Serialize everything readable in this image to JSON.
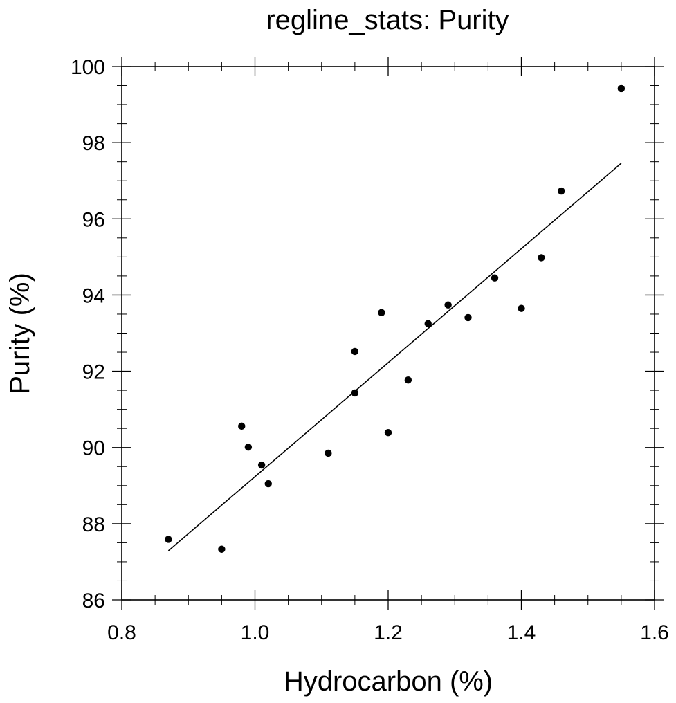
{
  "chart_data": {
    "type": "scatter",
    "title": "regline_stats: Purity",
    "xlabel": "Hydrocarbon (%)",
    "ylabel": "Purity (%)",
    "xlim": [
      0.8,
      1.6
    ],
    "ylim": [
      86,
      100
    ],
    "x_ticks": [
      "0.8",
      "1.0",
      "1.2",
      "1.4",
      "1.6"
    ],
    "y_ticks": [
      "86",
      "88",
      "90",
      "92",
      "94",
      "96",
      "98",
      "100"
    ],
    "x_tick_values": [
      0.8,
      1.0,
      1.2,
      1.4,
      1.6
    ],
    "y_tick_values": [
      86,
      88,
      90,
      92,
      94,
      96,
      98,
      100
    ],
    "grid": false,
    "points": [
      {
        "x": 0.87,
        "y": 87.59
      },
      {
        "x": 0.95,
        "y": 87.33
      },
      {
        "x": 0.98,
        "y": 90.56
      },
      {
        "x": 0.99,
        "y": 90.01
      },
      {
        "x": 1.01,
        "y": 89.54
      },
      {
        "x": 1.02,
        "y": 89.05
      },
      {
        "x": 1.11,
        "y": 89.85
      },
      {
        "x": 1.15,
        "y": 91.43
      },
      {
        "x": 1.15,
        "y": 92.52
      },
      {
        "x": 1.19,
        "y": 93.54
      },
      {
        "x": 1.2,
        "y": 90.39
      },
      {
        "x": 1.23,
        "y": 91.77
      },
      {
        "x": 1.26,
        "y": 93.25
      },
      {
        "x": 1.29,
        "y": 93.74
      },
      {
        "x": 1.32,
        "y": 93.41
      },
      {
        "x": 1.36,
        "y": 94.45
      },
      {
        "x": 1.4,
        "y": 93.65
      },
      {
        "x": 1.43,
        "y": 94.98
      },
      {
        "x": 1.46,
        "y": 96.73
      },
      {
        "x": 1.55,
        "y": 99.42
      }
    ],
    "regression_line": [
      {
        "x": 0.87,
        "y": 87.29
      },
      {
        "x": 1.55,
        "y": 97.46
      }
    ]
  }
}
